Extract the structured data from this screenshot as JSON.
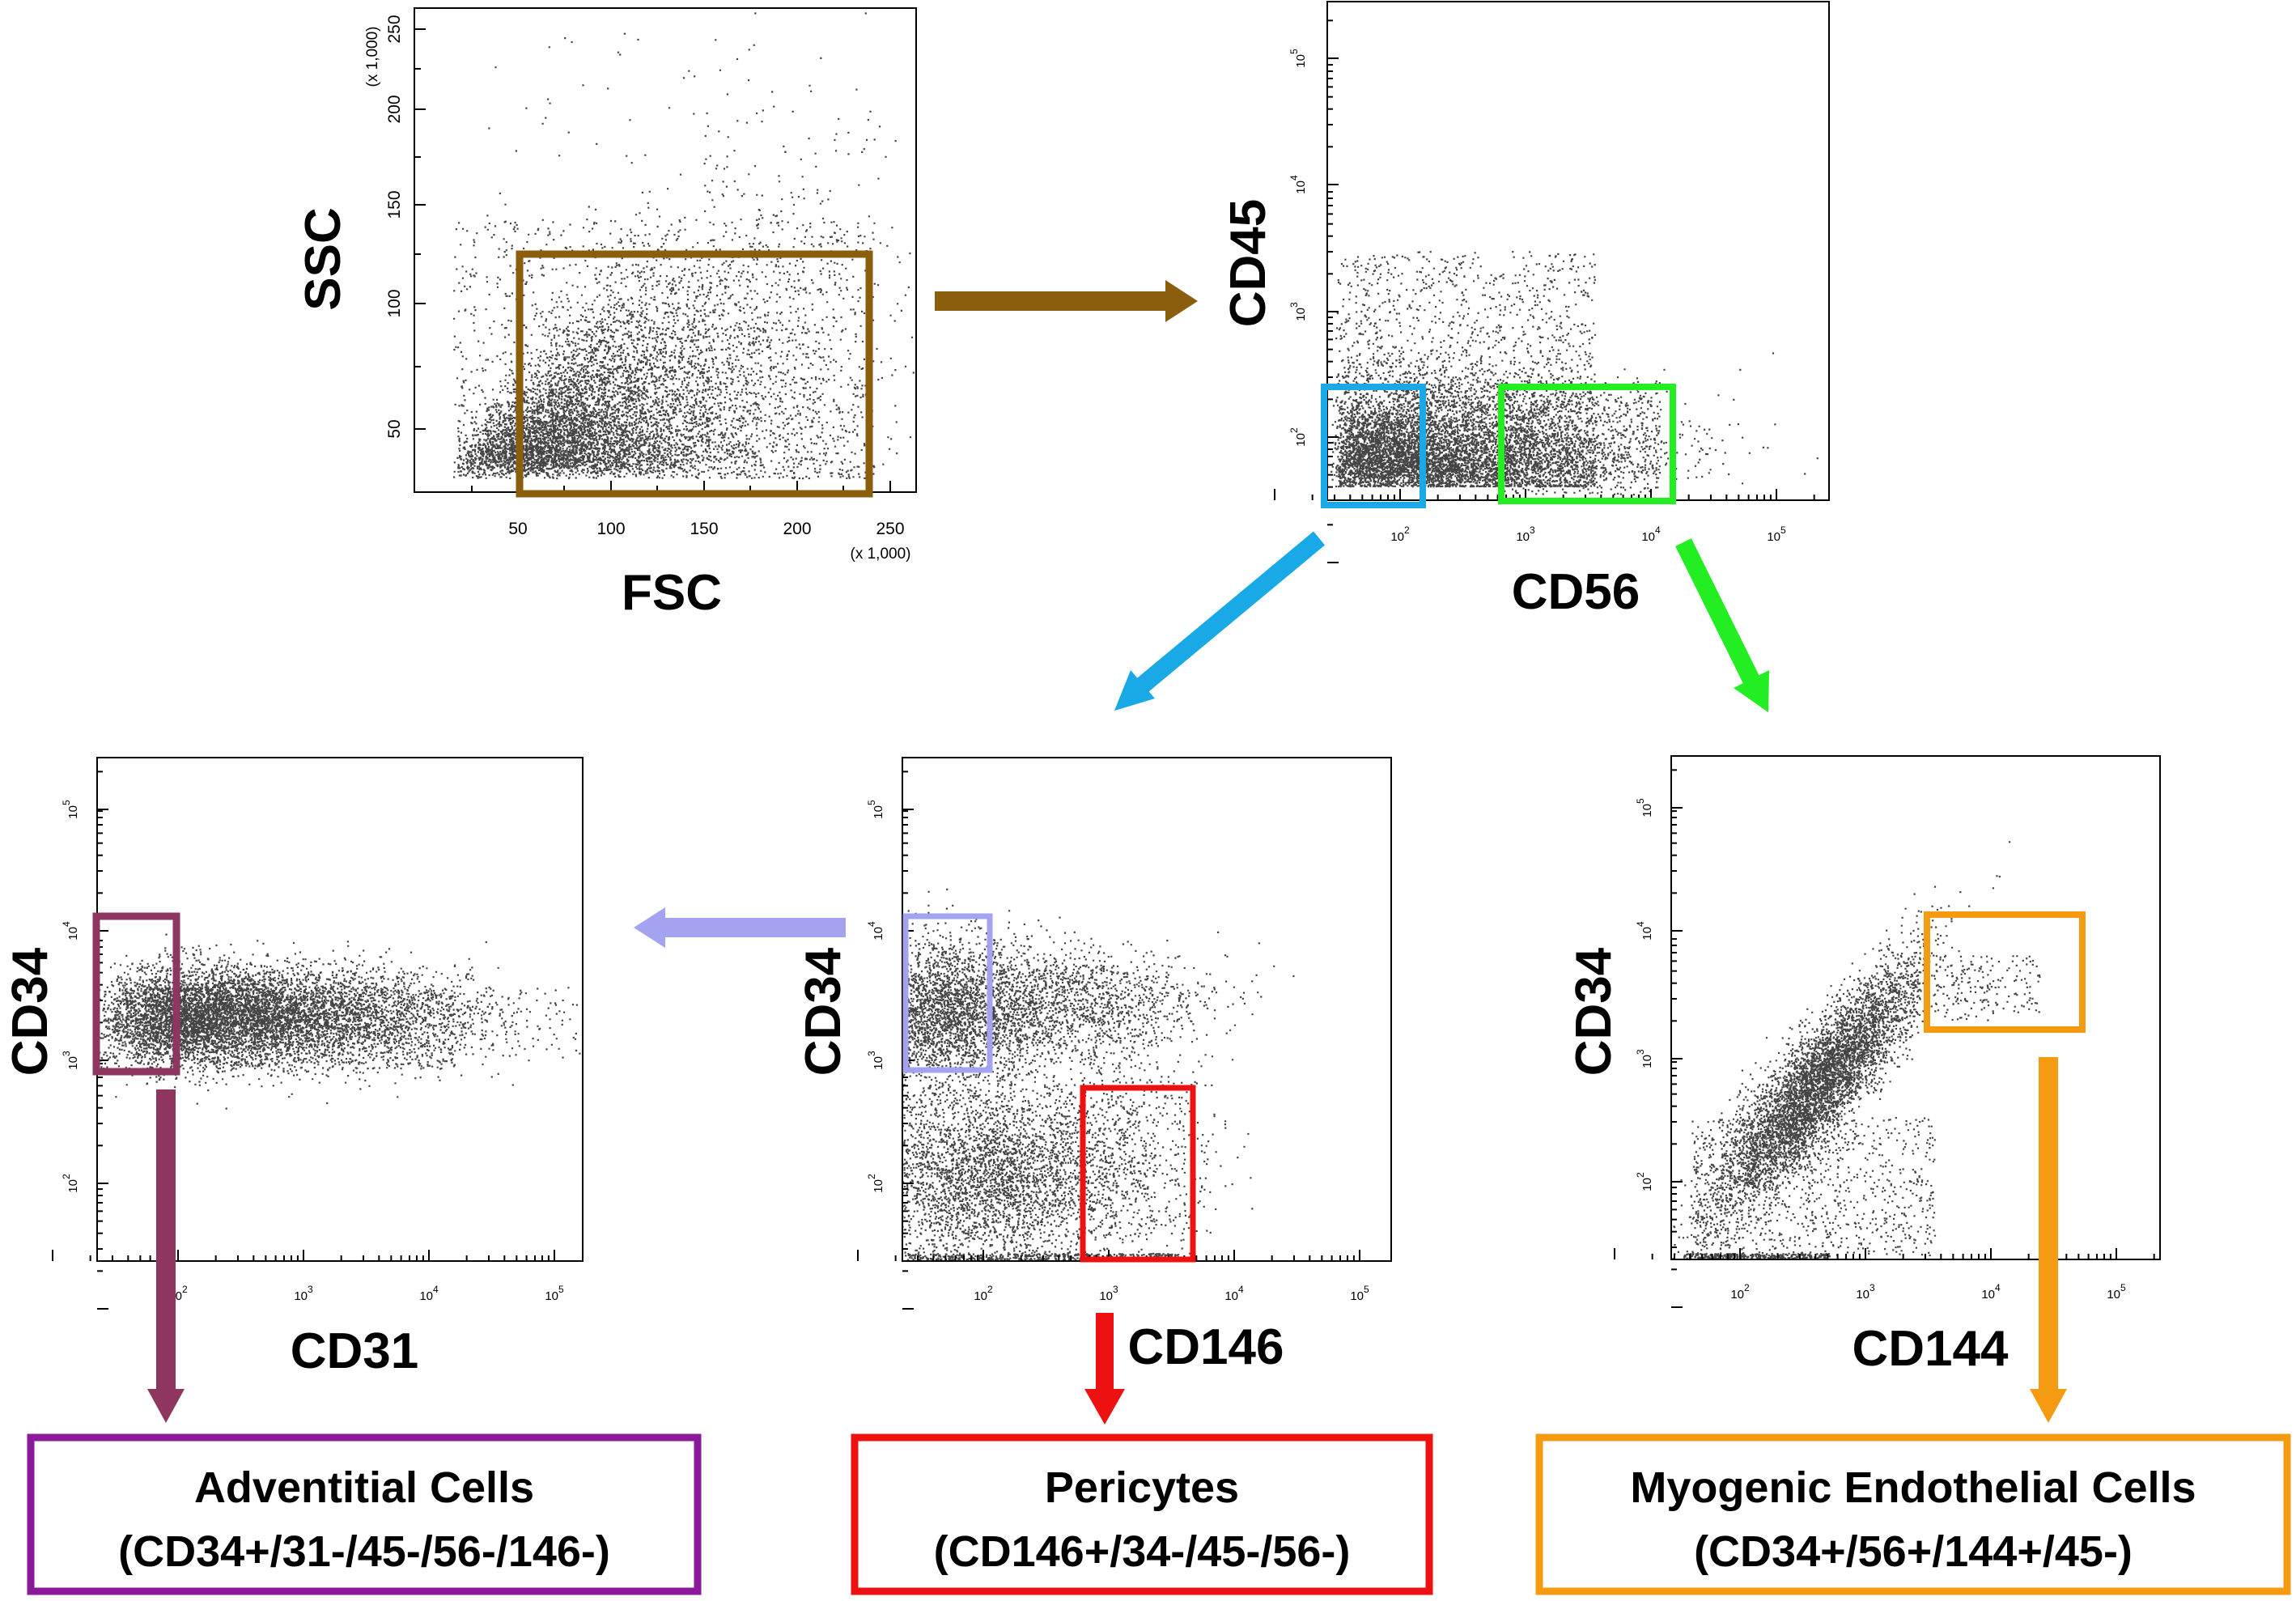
{
  "colors": {
    "gate_fsc_ssc": "#8B5E0E",
    "gate_cd45_low_cd56_neg": "#19A9E6",
    "gate_cd45_low_cd56_pos": "#22EE22",
    "gate_cd34_pos_cd146_neg": "#A3A3F0",
    "gate_cd146_pos_cd34_neg": "#EE1111",
    "gate_cd34_pos_cd31_neg": "#8E3660",
    "gate_cd34_cd144_pos": "#F59B11",
    "box_adventitial": "#8B1A9A",
    "box_pericytes": "#EE1111",
    "box_myogenic": "#F59B11",
    "dots": "#444444"
  },
  "plots": {
    "p1": {
      "xlabel": "FSC",
      "ylabel": "SSC",
      "x_ticks": [
        "50",
        "100",
        "150",
        "200",
        "250"
      ],
      "y_ticks": [
        "50",
        "100",
        "150",
        "200",
        "250"
      ],
      "x_scale_note": "(x 1,000)",
      "y_scale_note": "(x 1,000)"
    },
    "p2": {
      "xlabel": "CD56",
      "ylabel": "CD45",
      "x_ticks": [
        "2",
        "3",
        "4",
        "5"
      ],
      "y_ticks": [
        "2",
        "3",
        "4",
        "5"
      ]
    },
    "p3": {
      "xlabel": "CD31",
      "ylabel": "CD34",
      "x_ticks": [
        "2",
        "3",
        "4",
        "5"
      ],
      "y_ticks": [
        "2",
        "3",
        "4",
        "5"
      ]
    },
    "p4": {
      "xlabel": "CD146",
      "ylabel": "CD34",
      "x_ticks": [
        "2",
        "3",
        "4",
        "5"
      ],
      "y_ticks": [
        "2",
        "3",
        "4",
        "5"
      ]
    },
    "p5": {
      "xlabel": "CD144",
      "ylabel": "CD34",
      "x_ticks": [
        "2",
        "3",
        "4",
        "5"
      ],
      "y_ticks": [
        "2",
        "3",
        "4",
        "5"
      ]
    }
  },
  "tick_base": "10",
  "populations": {
    "adventitial": {
      "title": "Adventitial Cells",
      "markers": "(CD34+/31-/45-/56-/146-)"
    },
    "pericytes": {
      "title": "Pericytes",
      "markers": "(CD146+/34-/45-/56-)"
    },
    "myogenic": {
      "title": "Myogenic Endothelial Cells",
      "markers": "(CD34+/56+/144+/45-)"
    }
  }
}
